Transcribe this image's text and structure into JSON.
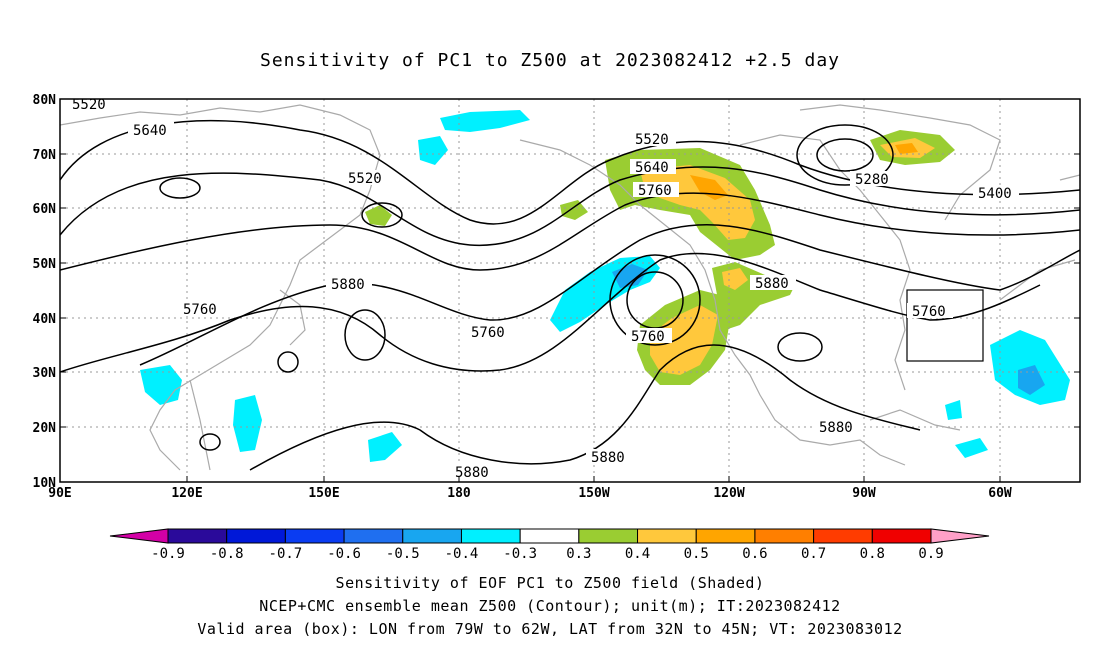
{
  "title": "Sensitivity of PC1 to Z500 at 2023082412 +2.5 day",
  "lat_labels": [
    "80N",
    "70N",
    "60N",
    "50N",
    "40N",
    "30N",
    "20N",
    "10N"
  ],
  "lon_labels": [
    "90E",
    "120E",
    "150E",
    "180",
    "150W",
    "120W",
    "90W",
    "60W"
  ],
  "contour_labels": [
    "5520",
    "5640",
    "5520",
    "5520",
    "5640",
    "5760",
    "5280",
    "5400",
    "5880",
    "5760",
    "5760",
    "5760",
    "5880",
    "5760",
    "5880",
    "5880",
    "5880"
  ],
  "colorbar": {
    "labels": [
      "-0.9",
      "-0.8",
      "-0.7",
      "-0.6",
      "-0.5",
      "-0.4",
      "-0.3",
      "0.3",
      "0.4",
      "0.5",
      "0.6",
      "0.7",
      "0.8",
      "0.9"
    ],
    "colors": [
      "#2a0a9a",
      "#0018d8",
      "#0a3cf2",
      "#1f6ff0",
      "#18a6f0",
      "#00f0ff",
      "#ffffff",
      "#9acd32",
      "#ffc83c",
      "#ffa500",
      "#ff7f00",
      "#ff3c00",
      "#f00000"
    ],
    "low_end_color": "#d300a6",
    "high_end_color": "#ffa0c8"
  },
  "valid_box": {
    "lon_from": "79W",
    "lon_to": "62W",
    "lat_from": "32N",
    "lat_to": "45N"
  },
  "caption": {
    "line1": "Sensitivity of EOF PC1 to Z500 field (Shaded)",
    "line2": "NCEP+CMC ensemble mean Z500 (Contour); unit(m); IT:2023082412",
    "line3": "Valid area (box): LON from 79W to 62W, LAT from 32N to 45N; VT: 2023083012"
  }
}
